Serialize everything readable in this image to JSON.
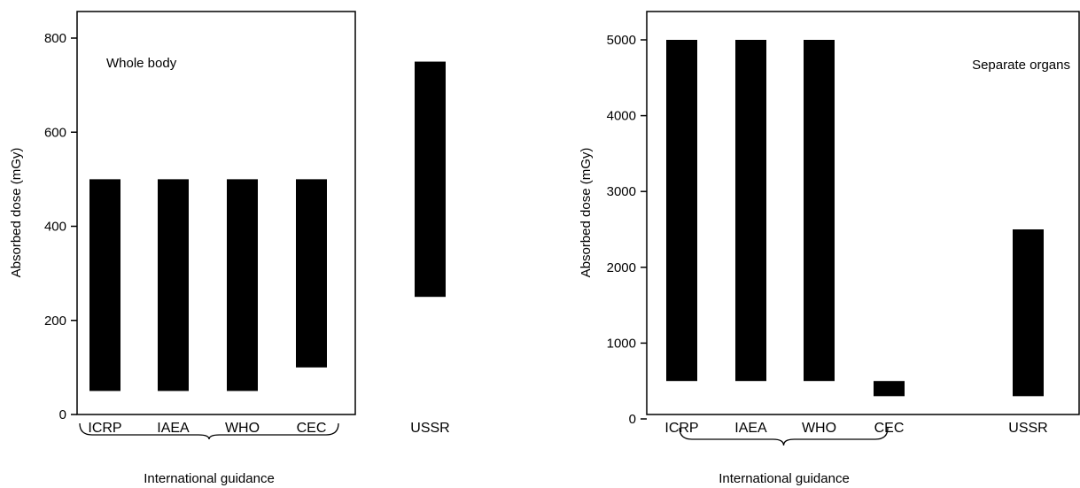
{
  "chart_data": [
    {
      "type": "bar",
      "subtype": "floating-range",
      "inset_label": "Whole body",
      "ylabel": "Absorbed dose (mGy)",
      "xlabel": "",
      "ylim": [
        0,
        850
      ],
      "yticks": [
        0,
        200,
        400,
        600,
        800
      ],
      "categories": [
        "ICRP",
        "IAEA",
        "WHO",
        "CEC",
        "USSR"
      ],
      "ranges": [
        [
          50,
          500
        ],
        [
          50,
          500
        ],
        [
          50,
          500
        ],
        [
          100,
          500
        ],
        [
          250,
          750
        ]
      ],
      "group_label": "International guidance",
      "group_members": [
        "ICRP",
        "IAEA",
        "WHO",
        "CEC"
      ],
      "grid": false,
      "bar_color": "#000000"
    },
    {
      "type": "bar",
      "subtype": "floating-range",
      "inset_label": "Separate organs",
      "ylabel": "Absorbed dose (mGy)",
      "xlabel": "",
      "ylim": [
        0,
        5400
      ],
      "yticks": [
        0,
        1000,
        2000,
        3000,
        4000,
        5000
      ],
      "categories": [
        "ICRP",
        "IAEA",
        "WHO",
        "CEC",
        "USSR"
      ],
      "ranges": [
        [
          500,
          5000
        ],
        [
          500,
          5000
        ],
        [
          500,
          5000
        ],
        [
          300,
          500
        ],
        [
          300,
          2500
        ]
      ],
      "group_label": "International guidance",
      "group_members": [
        "ICRP",
        "IAEA",
        "WHO",
        "CEC"
      ],
      "grid": false,
      "bar_color": "#000000"
    }
  ]
}
